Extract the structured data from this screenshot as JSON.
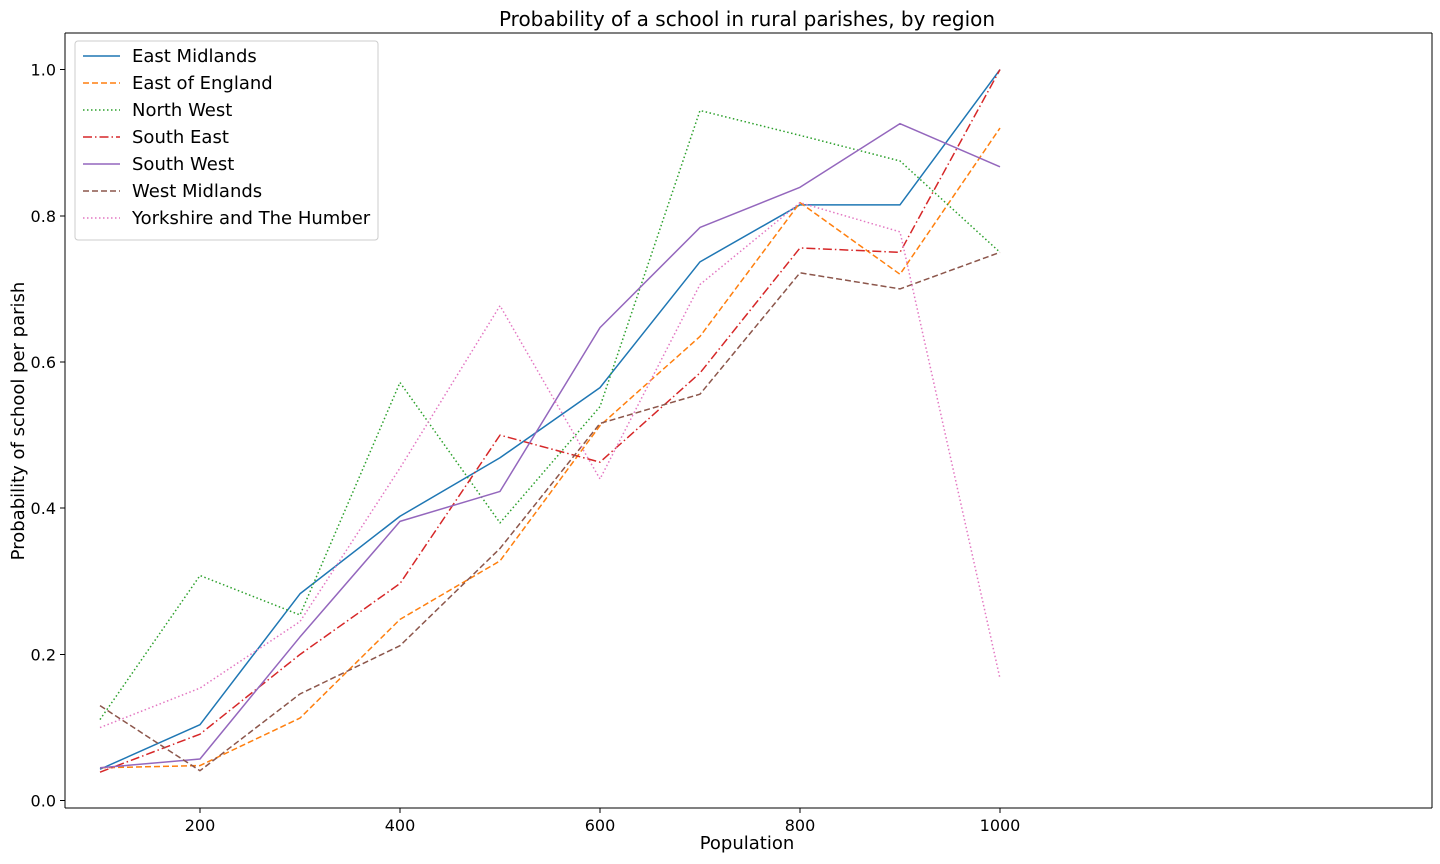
{
  "chart_data": {
    "type": "line",
    "title": "Probability of a school in rural parishes, by region",
    "xlabel": "Population",
    "ylabel": "Probability of school per parish",
    "xlim": [
      65,
      1432
    ],
    "ylim": [
      -0.01,
      1.05
    ],
    "x_ticks": [
      200,
      400,
      600,
      800,
      1000
    ],
    "y_ticks": [
      0.0,
      0.2,
      0.4,
      0.6,
      0.8,
      1.0
    ],
    "legend_position": "top-left",
    "grid": false,
    "x": [
      100,
      200,
      300,
      400,
      500,
      600,
      700,
      800,
      900,
      1000
    ],
    "series": [
      {
        "name": "East Midlands",
        "color": "#1f77b4",
        "dash": "solid",
        "values": [
          0.043,
          0.104,
          0.283,
          0.389,
          0.469,
          0.565,
          0.737,
          0.815,
          0.815,
          1.0
        ]
      },
      {
        "name": "East of England",
        "color": "#ff7f0e",
        "dash": "dashed",
        "values": [
          0.045,
          0.048,
          0.113,
          0.248,
          0.328,
          0.513,
          0.635,
          0.818,
          0.72,
          0.92
        ]
      },
      {
        "name": "North West",
        "color": "#2ca02c",
        "dash": "dotted",
        "values": [
          0.111,
          0.308,
          0.254,
          0.572,
          0.38,
          0.539,
          0.944,
          0.91,
          0.875,
          0.75
        ]
      },
      {
        "name": "South East",
        "color": "#d62728",
        "dash": "dashdot",
        "values": [
          0.039,
          0.091,
          0.2,
          0.297,
          0.5,
          0.463,
          0.585,
          0.756,
          0.75,
          1.0
        ]
      },
      {
        "name": "South West",
        "color": "#9467bd",
        "dash": "solid",
        "values": [
          0.045,
          0.057,
          0.224,
          0.382,
          0.423,
          0.647,
          0.784,
          0.839,
          0.926,
          0.867
        ]
      },
      {
        "name": "West Midlands",
        "color": "#8c564b",
        "dash": "dashed",
        "values": [
          0.13,
          0.041,
          0.146,
          0.212,
          0.345,
          0.516,
          0.556,
          0.722,
          0.7,
          0.75
        ]
      },
      {
        "name": "Yorkshire and The Humber",
        "color": "#e377c2",
        "dash": "dotted",
        "values": [
          0.1,
          0.154,
          0.245,
          0.455,
          0.677,
          0.44,
          0.706,
          0.818,
          0.778,
          0.167
        ]
      }
    ]
  }
}
